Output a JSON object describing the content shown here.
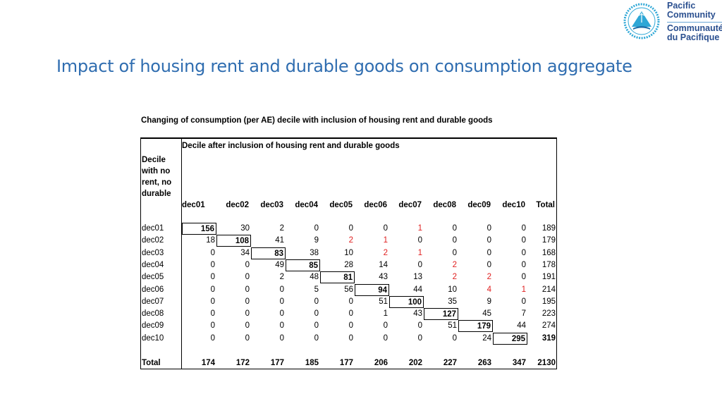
{
  "slide": {
    "title": "Impact of housing rent and durable goods on consumption aggregate"
  },
  "logo": {
    "line1": "Pacific",
    "line2": "Community",
    "line3": "Communauté",
    "line4": "du Pacifique",
    "colors": {
      "circle": "#2ea7d6",
      "text": "#2a4f8f"
    }
  },
  "table": {
    "caption": "Changing of consumption (per AE) decile with inclusion of housing rent and durable goods",
    "col_group_header": "Decile after inclusion of housing rent and durable goods",
    "row_group_header": [
      "Decile",
      "with no",
      "rent, no",
      "durable"
    ],
    "columns": [
      "dec01",
      "dec02",
      "dec03",
      "dec04",
      "dec05",
      "dec06",
      "dec07",
      "dec08",
      "dec09",
      "dec10",
      "Total"
    ],
    "rows": [
      {
        "label": "dec01",
        "values": [
          "156",
          "30",
          "2",
          "0",
          "0",
          "0",
          "1",
          "0",
          "0",
          "0",
          "189"
        ]
      },
      {
        "label": "dec02",
        "values": [
          "18",
          "108",
          "41",
          "9",
          "2",
          "1",
          "0",
          "0",
          "0",
          "0",
          "179"
        ]
      },
      {
        "label": "dec03",
        "values": [
          "0",
          "34",
          "83",
          "38",
          "10",
          "2",
          "1",
          "0",
          "0",
          "0",
          "168"
        ]
      },
      {
        "label": "dec04",
        "values": [
          "0",
          "0",
          "49",
          "85",
          "28",
          "14",
          "0",
          "2",
          "0",
          "0",
          "178"
        ]
      },
      {
        "label": "dec05",
        "values": [
          "0",
          "0",
          "2",
          "48",
          "81",
          "43",
          "13",
          "2",
          "2",
          "0",
          "191"
        ]
      },
      {
        "label": "dec06",
        "values": [
          "0",
          "0",
          "0",
          "5",
          "56",
          "94",
          "44",
          "10",
          "4",
          "1",
          "214"
        ]
      },
      {
        "label": "dec07",
        "values": [
          "0",
          "0",
          "0",
          "0",
          "0",
          "51",
          "100",
          "35",
          "9",
          "0",
          "195"
        ]
      },
      {
        "label": "dec08",
        "values": [
          "0",
          "0",
          "0",
          "0",
          "0",
          "1",
          "43",
          "127",
          "45",
          "7",
          "223"
        ]
      },
      {
        "label": "dec09",
        "values": [
          "0",
          "0",
          "0",
          "0",
          "0",
          "0",
          "0",
          "51",
          "179",
          "44",
          "274"
        ]
      },
      {
        "label": "dec10",
        "values": [
          "0",
          "0",
          "0",
          "0",
          "0",
          "0",
          "0",
          "0",
          "24",
          "295",
          "319"
        ]
      }
    ],
    "total_row": {
      "label": "Total",
      "values": [
        "174",
        "172",
        "177",
        "185",
        "177",
        "206",
        "202",
        "227",
        "263",
        "347",
        "2130"
      ]
    },
    "red_cells": [
      [
        0,
        6
      ],
      [
        1,
        4
      ],
      [
        1,
        5
      ],
      [
        2,
        5
      ],
      [
        2,
        6
      ],
      [
        3,
        7
      ],
      [
        4,
        7
      ],
      [
        4,
        8
      ],
      [
        5,
        8
      ],
      [
        5,
        9
      ]
    ],
    "colors": {
      "highlight": "#e02020"
    }
  }
}
